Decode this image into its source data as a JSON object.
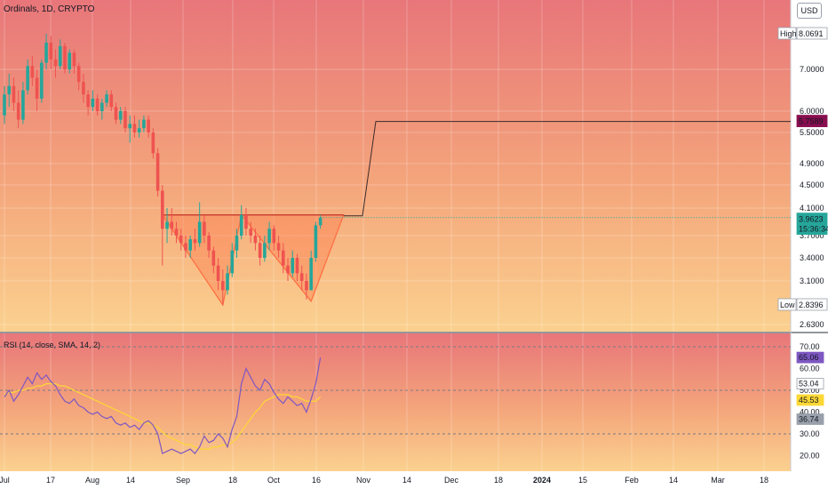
{
  "header": {
    "title": "Ordinals, 1D, CRYPTO",
    "currency": "USD"
  },
  "rsi": {
    "title": "RSI (14, close, SMA, 14, 2)"
  },
  "colors": {
    "up": "#26a69a",
    "down": "#ef5350",
    "pattern_fill": "#ff7043",
    "projection": "#3b2a2a",
    "rsi_line": "#7e57c2",
    "rsi_ma": "#fdd835"
  },
  "chart_data": [
    {
      "type": "candlestick",
      "title": "Ordinals, 1D, CRYPTO",
      "ylim": [
        2.6,
        9.0
      ],
      "x_tick_labels": [
        "Jul",
        "17",
        "Aug",
        "14",
        "Sep",
        "18",
        "Oct",
        "16",
        "Nov",
        "14",
        "Dec",
        "18",
        "2024",
        "15",
        "Feb",
        "14",
        "Mar",
        "18"
      ],
      "y_tick_labels": [
        "7.0000",
        "6.0000",
        "5.5000",
        "4.9000",
        "4.5000",
        "4.1000",
        "3.7000",
        "3.4000",
        "3.1000",
        "2.6300"
      ],
      "price_labels": [
        {
          "label": "High",
          "value": "8.0691"
        },
        {
          "label": "",
          "value": "5.7589"
        },
        {
          "label": "",
          "value": "3.9623",
          "sub": "15:36:34"
        },
        {
          "label": "Low",
          "value": "2.8396"
        }
      ],
      "ohlc": [
        [
          5.9,
          6.6,
          5.7,
          6.4
        ],
        [
          6.4,
          6.9,
          6.1,
          6.6
        ],
        [
          6.6,
          6.8,
          6.0,
          6.2
        ],
        [
          6.2,
          6.5,
          5.6,
          5.8
        ],
        [
          5.8,
          6.7,
          5.7,
          6.5
        ],
        [
          6.5,
          7.3,
          6.4,
          7.1
        ],
        [
          7.1,
          7.4,
          6.6,
          6.8
        ],
        [
          6.8,
          7.0,
          6.0,
          6.3
        ],
        [
          6.3,
          7.3,
          6.2,
          7.2
        ],
        [
          7.2,
          8.07,
          7.0,
          7.8
        ],
        [
          7.8,
          8.0,
          7.0,
          7.3
        ],
        [
          7.3,
          7.6,
          6.8,
          7.1
        ],
        [
          7.1,
          7.9,
          7.0,
          7.7
        ],
        [
          7.7,
          7.8,
          6.9,
          7.0
        ],
        [
          7.0,
          7.6,
          6.9,
          7.5
        ],
        [
          7.5,
          7.6,
          6.9,
          7.1
        ],
        [
          7.1,
          7.2,
          6.5,
          6.7
        ],
        [
          6.7,
          6.9,
          6.2,
          6.4
        ],
        [
          6.4,
          6.5,
          5.9,
          6.1
        ],
        [
          6.1,
          6.5,
          6.0,
          6.3
        ],
        [
          6.3,
          6.4,
          5.9,
          6.0
        ],
        [
          6.0,
          6.3,
          5.8,
          6.2
        ],
        [
          6.2,
          6.5,
          6.1,
          6.4
        ],
        [
          6.4,
          6.5,
          6.0,
          6.1
        ],
        [
          6.1,
          6.2,
          5.7,
          5.8
        ],
        [
          5.8,
          6.1,
          5.7,
          6.0
        ],
        [
          6.0,
          6.1,
          5.5,
          5.6
        ],
        [
          5.6,
          5.9,
          5.3,
          5.7
        ],
        [
          5.7,
          5.9,
          5.4,
          5.5
        ],
        [
          5.5,
          5.8,
          5.4,
          5.6
        ],
        [
          5.6,
          5.9,
          5.5,
          5.8
        ],
        [
          5.8,
          5.9,
          5.4,
          5.5
        ],
        [
          5.5,
          5.6,
          5.0,
          5.1
        ],
        [
          5.1,
          5.2,
          4.3,
          4.4
        ],
        [
          4.4,
          4.5,
          3.3,
          3.8
        ],
        [
          3.8,
          4.1,
          3.6,
          3.9
        ],
        [
          3.9,
          4.1,
          3.7,
          3.8
        ],
        [
          3.8,
          3.9,
          3.6,
          3.7
        ],
        [
          3.7,
          3.8,
          3.5,
          3.6
        ],
        [
          3.6,
          3.7,
          3.4,
          3.5
        ],
        [
          3.5,
          3.7,
          3.4,
          3.65
        ],
        [
          3.65,
          3.8,
          3.5,
          3.6
        ],
        [
          3.6,
          4.2,
          3.55,
          3.9
        ],
        [
          3.9,
          4.0,
          3.6,
          3.7
        ],
        [
          3.7,
          3.75,
          3.4,
          3.5
        ],
        [
          3.5,
          3.55,
          3.2,
          3.3
        ],
        [
          3.3,
          3.4,
          3.0,
          3.1
        ],
        [
          3.1,
          3.25,
          2.84,
          3.0
        ],
        [
          3.0,
          3.3,
          2.95,
          3.2
        ],
        [
          3.2,
          3.6,
          3.15,
          3.5
        ],
        [
          3.5,
          3.8,
          3.4,
          3.7
        ],
        [
          3.7,
          4.15,
          3.65,
          4.0
        ],
        [
          4.0,
          4.1,
          3.7,
          3.8
        ],
        [
          3.8,
          3.9,
          3.6,
          3.7
        ],
        [
          3.7,
          3.8,
          3.5,
          3.6
        ],
        [
          3.6,
          3.7,
          3.3,
          3.4
        ],
        [
          3.4,
          3.7,
          3.35,
          3.6
        ],
        [
          3.6,
          3.9,
          3.5,
          3.8
        ],
        [
          3.8,
          3.85,
          3.5,
          3.6
        ],
        [
          3.6,
          3.7,
          3.4,
          3.5
        ],
        [
          3.5,
          3.6,
          3.2,
          3.3
        ],
        [
          3.3,
          3.4,
          3.1,
          3.2
        ],
        [
          3.2,
          3.5,
          3.15,
          3.4
        ],
        [
          3.4,
          3.45,
          3.1,
          3.2
        ],
        [
          3.2,
          3.3,
          3.0,
          3.1
        ],
        [
          3.1,
          3.2,
          2.9,
          3.0
        ],
        [
          3.0,
          3.5,
          3.0,
          3.4
        ],
        [
          3.4,
          3.9,
          3.35,
          3.85
        ],
        [
          3.85,
          4.0,
          3.8,
          3.96
        ]
      ]
    },
    {
      "type": "line",
      "title": "RSI (14, close, SMA, 14, 2)",
      "ylim": [
        15,
        75
      ],
      "y_tick_labels": [
        "70.00",
        "60.00",
        "50.00",
        "40.00",
        "30.00",
        "20.00"
      ],
      "value_labels": [
        "65.06",
        "53.04",
        "45.53",
        "36.74"
      ],
      "series": [
        {
          "values": [
            47,
            50,
            45,
            48,
            52,
            56,
            53,
            58,
            55,
            57,
            54,
            52,
            48,
            45,
            44,
            46,
            43,
            42,
            40,
            39,
            40,
            38,
            37,
            38,
            35,
            34,
            35,
            33,
            34,
            32,
            35,
            36,
            34,
            30,
            21,
            22,
            23,
            22,
            21,
            22,
            23,
            21,
            24,
            29,
            26,
            27,
            30,
            28,
            24,
            32,
            38,
            53,
            60,
            56,
            52,
            50,
            55,
            53,
            49,
            46,
            44,
            47,
            45,
            43,
            44,
            40,
            46,
            53,
            65
          ]
        },
        {
          "values": [
            48,
            49,
            49,
            50,
            50,
            51,
            51,
            52,
            52,
            53,
            53,
            53,
            52,
            52,
            51,
            50,
            49,
            48,
            47,
            46,
            45,
            44,
            43,
            42,
            41,
            40,
            39,
            38,
            37,
            36,
            35,
            35,
            34,
            33,
            31,
            29,
            28,
            27,
            26,
            25,
            25,
            24,
            23,
            23,
            23,
            24,
            24,
            25,
            25,
            26,
            28,
            31,
            34,
            37,
            40,
            42,
            45,
            46,
            47,
            48,
            48,
            48,
            47,
            47,
            46,
            45,
            45,
            45,
            47
          ]
        }
      ]
    }
  ]
}
